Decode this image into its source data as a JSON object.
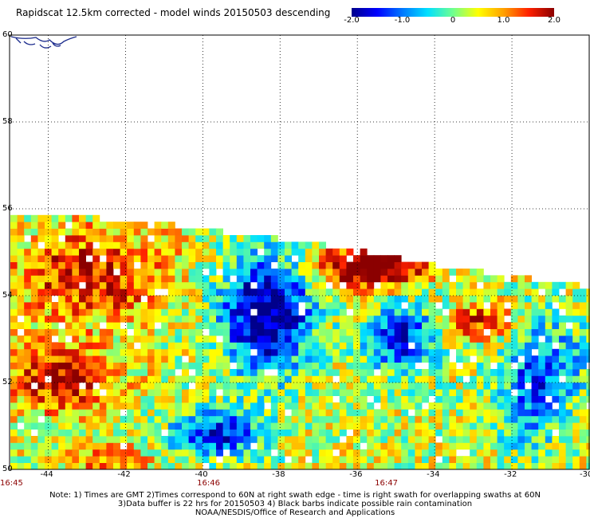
{
  "title": "Rapidscat 12.5km corrected - model winds 20150503 descending",
  "colorbar": {
    "labels": [
      "-2.0",
      "-1.0",
      "0",
      "1.0",
      "2.0"
    ],
    "values": [
      -2.0,
      -1.0,
      0,
      1.0,
      2.0
    ],
    "min": -2.0,
    "max": 2.0,
    "colors": [
      "#00008b",
      "#0000ff",
      "#0078ff",
      "#00e0ff",
      "#6fff8f",
      "#ffff00",
      "#ffa000",
      "#ff2000",
      "#8b0000"
    ]
  },
  "map": {
    "lon_range": [
      -45,
      -30
    ],
    "lat_range": [
      50,
      60
    ],
    "lat_labels": [
      "60",
      "58",
      "56",
      "54",
      "52",
      "50"
    ],
    "lat_values": [
      60,
      58,
      56,
      54,
      52,
      50
    ],
    "lon_labels": [
      "-44",
      "-42",
      "-40",
      "-38",
      "-36",
      "-34",
      "-32",
      "-30"
    ],
    "lon_values": [
      -44,
      -42,
      -40,
      -38,
      -36,
      -34,
      -32,
      -30
    ],
    "grid": "dotted",
    "coast_color": "#1a2a8c"
  },
  "times": [
    {
      "label": "16:45",
      "lon": -45
    },
    {
      "label": "16:46",
      "lon": -39.9
    },
    {
      "label": "16:47",
      "lon": -35.3
    }
  ],
  "notes": [
    "Note: 1) Times are GMT 2)Times correspond to 60N at right swath edge - time is right swath for overlapping swaths at 60N",
    "3)Data buffer is 22 hrs for 20150503 4) Black barbs indicate possible rain contamination",
    "NOAA/NESDIS/Office of Research and Applications"
  ]
}
